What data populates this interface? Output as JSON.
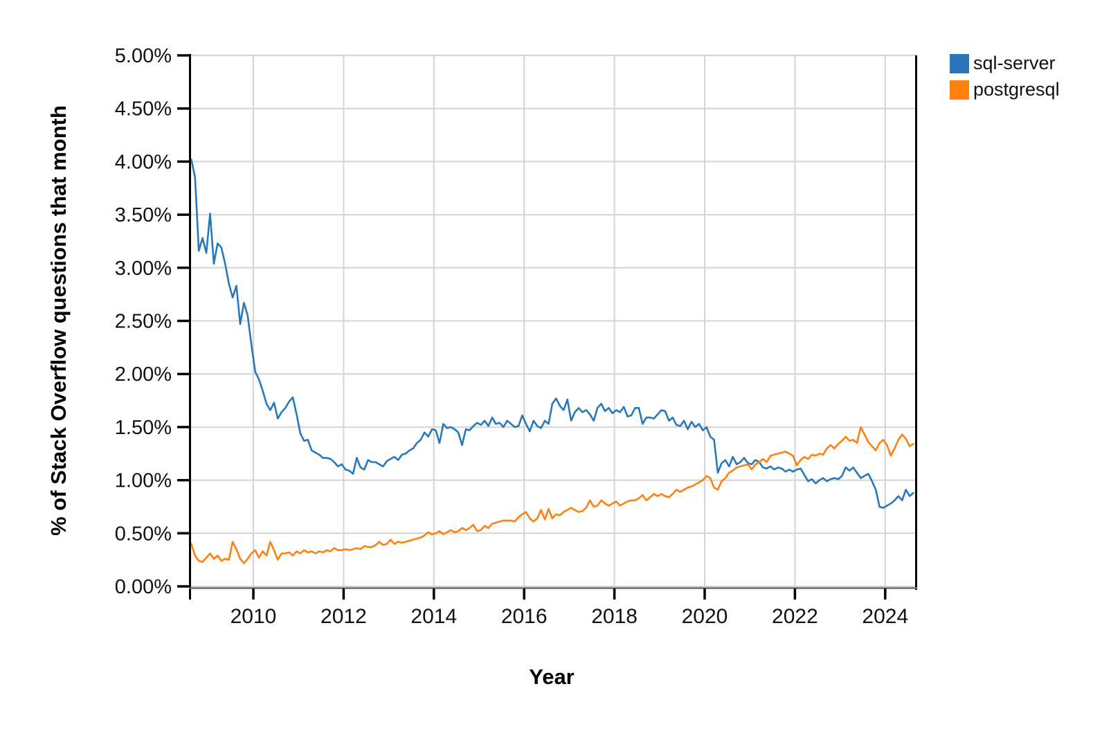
{
  "figure": {
    "background": "#ffffff",
    "grid_color": "#d4d4d4",
    "axis_color": "#000000",
    "bottom_axis_color": "#6b6b6b",
    "tick_label_color": "#111111"
  },
  "chart_data": {
    "type": "line",
    "title": "",
    "xlabel": "Year",
    "ylabel": "% of Stack Overflow questions that month",
    "x_unit": "decimal_year_monthly_samples",
    "x_start": 2008.625,
    "x_step": 0.0833333,
    "xlim": [
      2008.55,
      2024.71
    ],
    "ylim": [
      0,
      5
    ],
    "grid": true,
    "legend_position": "top-right-outside",
    "x_ticks": [
      2010,
      2012,
      2014,
      2016,
      2018,
      2020,
      2022,
      2024
    ],
    "x_tick_labels": [
      "2010",
      "2012",
      "2014",
      "2016",
      "2018",
      "2020",
      "2022",
      "2024"
    ],
    "y_tick_values": [
      0,
      0.5,
      1.0,
      1.5,
      2.0,
      2.5,
      3.0,
      3.5,
      4.0,
      4.5,
      5.0
    ],
    "y_tick_labels": [
      "0.00%",
      "0.50%",
      "1.00%",
      "1.50%",
      "2.00%",
      "2.50%",
      "3.00%",
      "3.50%",
      "4.00%",
      "4.50%",
      "5.00%"
    ],
    "series": [
      {
        "name": "sql-server",
        "color": "#2878b9",
        "values": [
          4.02,
          3.85,
          3.16,
          3.28,
          3.14,
          3.51,
          3.04,
          3.23,
          3.19,
          3.04,
          2.85,
          2.72,
          2.83,
          2.47,
          2.67,
          2.55,
          2.27,
          2.02,
          1.95,
          1.84,
          1.72,
          1.66,
          1.73,
          1.58,
          1.64,
          1.68,
          1.74,
          1.78,
          1.62,
          1.44,
          1.37,
          1.38,
          1.28,
          1.26,
          1.24,
          1.21,
          1.21,
          1.2,
          1.17,
          1.13,
          1.15,
          1.1,
          1.09,
          1.06,
          1.21,
          1.12,
          1.1,
          1.19,
          1.17,
          1.17,
          1.15,
          1.13,
          1.18,
          1.2,
          1.22,
          1.19,
          1.24,
          1.25,
          1.28,
          1.3,
          1.35,
          1.38,
          1.45,
          1.41,
          1.48,
          1.47,
          1.35,
          1.53,
          1.49,
          1.5,
          1.48,
          1.45,
          1.33,
          1.48,
          1.47,
          1.51,
          1.54,
          1.52,
          1.56,
          1.51,
          1.59,
          1.53,
          1.54,
          1.5,
          1.56,
          1.53,
          1.5,
          1.51,
          1.61,
          1.53,
          1.46,
          1.56,
          1.51,
          1.49,
          1.56,
          1.53,
          1.72,
          1.77,
          1.7,
          1.66,
          1.76,
          1.56,
          1.64,
          1.68,
          1.64,
          1.66,
          1.62,
          1.56,
          1.68,
          1.72,
          1.65,
          1.68,
          1.63,
          1.66,
          1.64,
          1.69,
          1.6,
          1.61,
          1.68,
          1.68,
          1.53,
          1.59,
          1.59,
          1.58,
          1.62,
          1.66,
          1.65,
          1.56,
          1.59,
          1.52,
          1.51,
          1.56,
          1.48,
          1.55,
          1.5,
          1.53,
          1.47,
          1.5,
          1.41,
          1.38,
          1.07,
          1.16,
          1.19,
          1.13,
          1.22,
          1.15,
          1.17,
          1.21,
          1.16,
          1.15,
          1.19,
          1.17,
          1.12,
          1.11,
          1.13,
          1.1,
          1.12,
          1.11,
          1.08,
          1.1,
          1.08,
          1.1,
          1.11,
          1.05,
          0.99,
          1.01,
          0.97,
          1.0,
          1.02,
          0.99,
          1.01,
          1.02,
          1.01,
          1.04,
          1.12,
          1.09,
          1.12,
          1.07,
          1.02,
          1.04,
          1.06,
          0.99,
          0.91,
          0.75,
          0.74,
          0.76,
          0.78,
          0.81,
          0.85,
          0.81,
          0.91,
          0.85,
          0.88
        ]
      },
      {
        "name": "postgresql",
        "color": "#ff800e",
        "values": [
          0.4,
          0.29,
          0.24,
          0.23,
          0.27,
          0.31,
          0.26,
          0.29,
          0.24,
          0.26,
          0.25,
          0.42,
          0.35,
          0.26,
          0.22,
          0.26,
          0.31,
          0.34,
          0.27,
          0.33,
          0.29,
          0.42,
          0.34,
          0.25,
          0.31,
          0.31,
          0.32,
          0.29,
          0.33,
          0.31,
          0.34,
          0.32,
          0.33,
          0.31,
          0.33,
          0.32,
          0.34,
          0.33,
          0.36,
          0.34,
          0.34,
          0.35,
          0.34,
          0.35,
          0.36,
          0.35,
          0.38,
          0.37,
          0.37,
          0.39,
          0.42,
          0.39,
          0.4,
          0.44,
          0.4,
          0.42,
          0.41,
          0.42,
          0.43,
          0.44,
          0.45,
          0.46,
          0.48,
          0.51,
          0.49,
          0.5,
          0.52,
          0.49,
          0.51,
          0.53,
          0.51,
          0.52,
          0.55,
          0.53,
          0.55,
          0.58,
          0.52,
          0.53,
          0.57,
          0.55,
          0.59,
          0.6,
          0.61,
          0.62,
          0.62,
          0.62,
          0.61,
          0.65,
          0.68,
          0.7,
          0.64,
          0.61,
          0.64,
          0.72,
          0.63,
          0.73,
          0.64,
          0.68,
          0.67,
          0.7,
          0.72,
          0.74,
          0.72,
          0.7,
          0.71,
          0.74,
          0.81,
          0.75,
          0.76,
          0.81,
          0.78,
          0.76,
          0.78,
          0.8,
          0.76,
          0.78,
          0.8,
          0.81,
          0.81,
          0.83,
          0.86,
          0.81,
          0.84,
          0.87,
          0.85,
          0.87,
          0.85,
          0.84,
          0.87,
          0.91,
          0.89,
          0.91,
          0.93,
          0.94,
          0.96,
          0.98,
          1.0,
          1.04,
          1.02,
          0.93,
          0.91,
          0.99,
          1.02,
          1.07,
          1.09,
          1.12,
          1.13,
          1.14,
          1.15,
          1.1,
          1.15,
          1.17,
          1.2,
          1.17,
          1.23,
          1.24,
          1.25,
          1.26,
          1.27,
          1.25,
          1.23,
          1.14,
          1.19,
          1.22,
          1.2,
          1.24,
          1.23,
          1.25,
          1.24,
          1.3,
          1.33,
          1.3,
          1.34,
          1.37,
          1.41,
          1.37,
          1.38,
          1.35,
          1.5,
          1.43,
          1.36,
          1.32,
          1.28,
          1.35,
          1.38,
          1.33,
          1.23,
          1.3,
          1.38,
          1.43,
          1.39,
          1.32,
          1.34
        ]
      }
    ]
  },
  "legend": {
    "items": [
      {
        "label": "sql-server",
        "color": "#2878b9"
      },
      {
        "label": "postgresql",
        "color": "#ff800e"
      }
    ]
  }
}
